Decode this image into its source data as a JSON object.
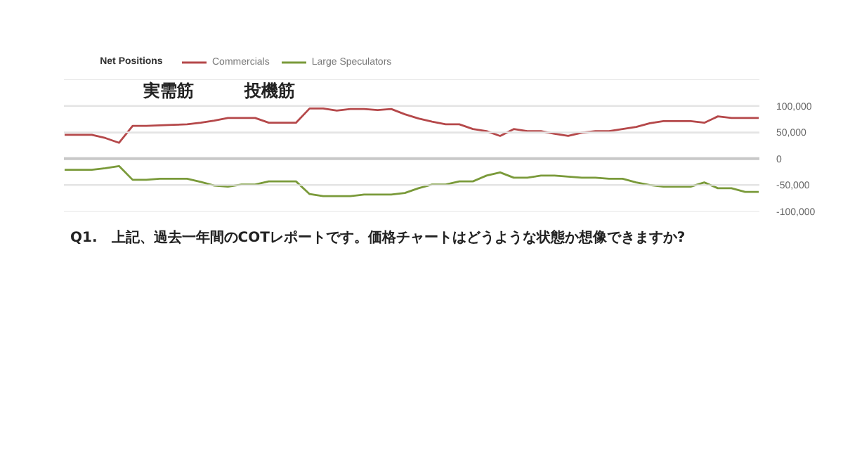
{
  "chart_data": {
    "type": "line",
    "legend_title": "Net Positions",
    "categories": [
      null,
      null,
      null,
      null,
      null,
      null,
      null,
      null,
      null,
      null,
      null,
      null,
      null,
      null,
      null,
      null,
      null,
      null,
      null,
      null,
      null,
      null,
      null,
      null,
      null,
      null,
      null,
      null,
      null,
      null,
      null,
      null,
      null,
      null,
      null,
      null,
      null,
      null,
      null,
      null,
      null,
      null,
      null,
      null,
      null,
      null,
      null,
      null,
      null,
      null,
      null,
      null
    ],
    "series": [
      {
        "name": "Commercials",
        "color": "#b5484a",
        "values": [
          45000,
          45000,
          45000,
          39000,
          30000,
          62000,
          62000,
          63000,
          64000,
          65000,
          68000,
          72000,
          77000,
          77000,
          77000,
          68000,
          68000,
          68000,
          95000,
          95000,
          91000,
          94000,
          94000,
          92000,
          94000,
          84000,
          76000,
          70000,
          65000,
          65000,
          56000,
          52000,
          43000,
          56000,
          52000,
          52000,
          47000,
          43000,
          49000,
          52000,
          52000,
          56000,
          60000,
          67000,
          71000,
          71000,
          71000,
          68000,
          80000,
          77000,
          77000,
          77000
        ]
      },
      {
        "name": "Large Speculators",
        "color": "#7a9a3a",
        "values": [
          -21000,
          -21000,
          -21000,
          -18000,
          -14000,
          -40000,
          -40000,
          -38000,
          -38000,
          -38000,
          -44000,
          -51000,
          -53000,
          -49000,
          -49000,
          -43000,
          -43000,
          -43000,
          -67000,
          -71000,
          -71000,
          -71000,
          -68000,
          -68000,
          -68000,
          -65000,
          -56000,
          -49000,
          -49000,
          -43000,
          -43000,
          -32000,
          -26000,
          -36000,
          -36000,
          -32000,
          -32000,
          -34000,
          -36000,
          -36000,
          -38000,
          -38000,
          -45000,
          -50000,
          -53000,
          -53000,
          -53000,
          -45000,
          -56000,
          -56000,
          -63000,
          -63000
        ]
      }
    ],
    "ylim": [
      -100000,
      150000
    ],
    "yticks": [
      {
        "value": -100000,
        "label": "-100,000"
      },
      {
        "value": -50000,
        "label": "-50,000"
      },
      {
        "value": 0,
        "label": "0"
      },
      {
        "value": 50000,
        "label": "50,000"
      },
      {
        "value": 100000,
        "label": "100,000"
      },
      {
        "value": 150000,
        "label": null
      }
    ],
    "ref_lines": [
      {
        "axis": "y",
        "value": 0,
        "color": "#c8c8c8"
      }
    ],
    "grid": "y",
    "legend": "top left",
    "tick_labels": "y",
    "marker": "none",
    "line_style": "solid",
    "annotations": [
      "実需筋",
      "投機筋",
      "Q1.　上記、過去一年間のCOTレポートです。価格チャートはどうような状態か想像できますか?"
    ]
  }
}
